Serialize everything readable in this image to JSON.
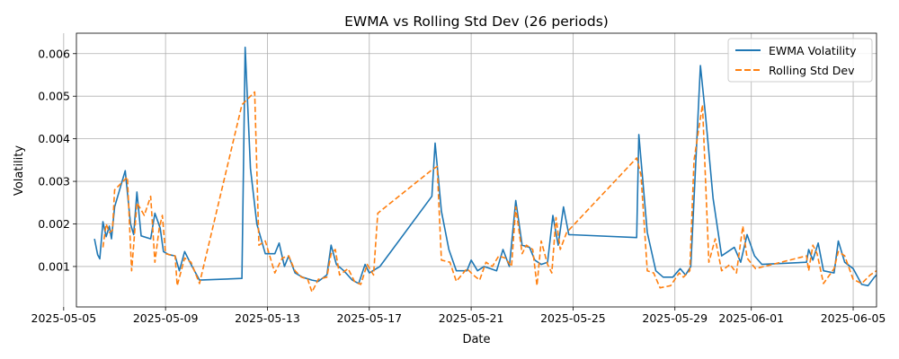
{
  "chart_data": {
    "type": "line",
    "title": "EWMA vs Rolling Std Dev (26 periods)",
    "xlabel": "Date",
    "ylabel": "Volatility",
    "x_axis_type": "date",
    "xlim": [
      "2025-05-05T12:00",
      "2025-06-05T22:00"
    ],
    "ylim": [
      5e-05,
      0.00648
    ],
    "xticks": [
      "2025-05-05",
      "2025-05-09",
      "2025-05-13",
      "2025-05-17",
      "2025-05-21",
      "2025-05-25",
      "2025-05-29",
      "2025-06-01",
      "2025-06-05"
    ],
    "yticks": [
      0.001,
      0.002,
      0.003,
      0.004,
      0.005,
      0.006
    ],
    "ytick_labels": [
      "0.001",
      "0.002",
      "0.003",
      "0.004",
      "0.005",
      "0.006"
    ],
    "grid": true,
    "legend_position": "top-right",
    "series": [
      {
        "name": "EWMA Volatility",
        "color": "#1f77b4",
        "style": "solid",
        "points": [
          [
            "2025-05-06T05:00",
            0.00165
          ],
          [
            "2025-05-06T08:00",
            0.00128
          ],
          [
            "2025-05-06T10:00",
            0.00118
          ],
          [
            "2025-05-06T13:00",
            0.00205
          ],
          [
            "2025-05-06T16:00",
            0.0017
          ],
          [
            "2025-05-06T19:00",
            0.00195
          ],
          [
            "2025-05-06T21:00",
            0.00165
          ],
          [
            "2025-05-07T00:00",
            0.0024
          ],
          [
            "2025-05-07T10:00",
            0.00325
          ],
          [
            "2025-05-07T15:00",
            0.002
          ],
          [
            "2025-05-07T18:00",
            0.00175
          ],
          [
            "2025-05-07T21:00",
            0.00275
          ],
          [
            "2025-05-08T01:00",
            0.00172
          ],
          [
            "2025-05-08T10:00",
            0.00165
          ],
          [
            "2025-05-08T14:00",
            0.00225
          ],
          [
            "2025-05-08T19:00",
            0.0019
          ],
          [
            "2025-05-08T22:00",
            0.00135
          ],
          [
            "2025-05-09T03:00",
            0.00128
          ],
          [
            "2025-05-09T09:00",
            0.00125
          ],
          [
            "2025-05-09T13:00",
            0.0009
          ],
          [
            "2025-05-09T18:00",
            0.00135
          ],
          [
            "2025-05-10T00:00",
            0.00105
          ],
          [
            "2025-05-10T08:00",
            0.00068
          ],
          [
            "2025-05-12T00:00",
            0.00072
          ],
          [
            "2025-05-12T03:00",
            0.00615
          ],
          [
            "2025-05-12T08:00",
            0.0033
          ],
          [
            "2025-05-12T14:00",
            0.002
          ],
          [
            "2025-05-12T22:00",
            0.0013
          ],
          [
            "2025-05-13T07:00",
            0.0013
          ],
          [
            "2025-05-13T11:00",
            0.00155
          ],
          [
            "2025-05-13T16:00",
            0.001
          ],
          [
            "2025-05-13T20:00",
            0.00125
          ],
          [
            "2025-05-14T02:00",
            0.00085
          ],
          [
            "2025-05-14T09:00",
            0.00075
          ],
          [
            "2025-05-14T18:00",
            0.00068
          ],
          [
            "2025-05-15T00:00",
            0.00065
          ],
          [
            "2025-05-15T08:00",
            0.0008
          ],
          [
            "2025-05-15T12:00",
            0.0015
          ],
          [
            "2025-05-15T17:00",
            0.00105
          ],
          [
            "2025-05-16T00:00",
            0.0009
          ],
          [
            "2025-05-16T08:00",
            0.00068
          ],
          [
            "2025-05-16T14:00",
            0.0006
          ],
          [
            "2025-05-16T20:00",
            0.00105
          ],
          [
            "2025-05-17T00:00",
            0.00085
          ],
          [
            "2025-05-17T10:00",
            0.001
          ],
          [
            "2025-05-19T11:00",
            0.00265
          ],
          [
            "2025-05-19T14:00",
            0.0039
          ],
          [
            "2025-05-19T20:00",
            0.0023
          ],
          [
            "2025-05-20T03:00",
            0.0014
          ],
          [
            "2025-05-20T10:00",
            0.0009
          ],
          [
            "2025-05-20T20:00",
            0.0009
          ],
          [
            "2025-05-21T00:00",
            0.00115
          ],
          [
            "2025-05-21T06:00",
            0.0009
          ],
          [
            "2025-05-21T12:00",
            0.001
          ],
          [
            "2025-05-21T18:00",
            0.00095
          ],
          [
            "2025-05-22T00:00",
            0.0009
          ],
          [
            "2025-05-22T06:00",
            0.0014
          ],
          [
            "2025-05-22T12:00",
            0.001
          ],
          [
            "2025-05-22T18:00",
            0.00255
          ],
          [
            "2025-05-23T00:00",
            0.0015
          ],
          [
            "2025-05-23T07:00",
            0.00145
          ],
          [
            "2025-05-23T12:00",
            0.00115
          ],
          [
            "2025-05-23T18:00",
            0.00105
          ],
          [
            "2025-05-24T00:00",
            0.0011
          ],
          [
            "2025-05-24T05:00",
            0.0022
          ],
          [
            "2025-05-24T10:00",
            0.0015
          ],
          [
            "2025-05-24T15:00",
            0.0024
          ],
          [
            "2025-05-24T20:00",
            0.00175
          ],
          [
            "2025-05-27T12:00",
            0.00168
          ],
          [
            "2025-05-27T14:00",
            0.0041
          ],
          [
            "2025-05-27T22:00",
            0.0018
          ],
          [
            "2025-05-28T06:00",
            0.0009
          ],
          [
            "2025-05-28T13:00",
            0.00075
          ],
          [
            "2025-05-28T22:00",
            0.00075
          ],
          [
            "2025-05-29T05:00",
            0.00095
          ],
          [
            "2025-05-29T10:00",
            0.0008
          ],
          [
            "2025-05-29T15:00",
            0.001
          ],
          [
            "2025-05-30T00:00",
            0.00572
          ],
          [
            "2025-05-30T05:00",
            0.0045
          ],
          [
            "2025-05-30T12:00",
            0.0026
          ],
          [
            "2025-05-30T20:00",
            0.00125
          ],
          [
            "2025-05-31T08:00",
            0.00145
          ],
          [
            "2025-05-31T14:00",
            0.0011
          ],
          [
            "2025-05-31T20:00",
            0.00175
          ],
          [
            "2025-06-01T03:00",
            0.00125
          ],
          [
            "2025-06-01T10:00",
            0.00105
          ],
          [
            "2025-06-03T04:00",
            0.0011
          ],
          [
            "2025-06-03T06:00",
            0.0014
          ],
          [
            "2025-06-03T10:00",
            0.00115
          ],
          [
            "2025-06-03T15:00",
            0.00155
          ],
          [
            "2025-06-03T20:00",
            0.0009
          ],
          [
            "2025-06-04T06:00",
            0.00085
          ],
          [
            "2025-06-04T10:00",
            0.0016
          ],
          [
            "2025-06-04T16:00",
            0.0011
          ],
          [
            "2025-06-05T00:00",
            0.00095
          ],
          [
            "2025-06-05T08:00",
            0.00058
          ],
          [
            "2025-06-05T14:00",
            0.00055
          ],
          [
            "2025-06-05T20:00",
            0.00075
          ],
          [
            "2025-06-06T02:00",
            0.0009
          ],
          [
            "2025-06-06T06:00",
            0.0007
          ],
          [
            "2025-06-06T12:00",
            0.00045
          ]
        ]
      },
      {
        "name": "Rolling Std Dev",
        "color": "#ff7f0e",
        "style": "dashed",
        "points": [
          [
            "2025-05-06T13:00",
            0.00145
          ],
          [
            "2025-05-06T16:00",
            0.002
          ],
          [
            "2025-05-06T19:00",
            0.0018
          ],
          [
            "2025-05-06T22:00",
            0.00185
          ],
          [
            "2025-05-07T00:00",
            0.0028
          ],
          [
            "2025-05-07T12:00",
            0.0031
          ],
          [
            "2025-05-07T16:00",
            0.0009
          ],
          [
            "2025-05-07T18:00",
            0.0015
          ],
          [
            "2025-05-07T21:00",
            0.0025
          ],
          [
            "2025-05-08T04:00",
            0.0022
          ],
          [
            "2025-05-08T10:00",
            0.00265
          ],
          [
            "2025-05-08T14:00",
            0.0011
          ],
          [
            "2025-05-08T18:00",
            0.0019
          ],
          [
            "2025-05-08T21:00",
            0.0022
          ],
          [
            "2025-05-09T00:00",
            0.0013
          ],
          [
            "2025-05-09T09:00",
            0.00125
          ],
          [
            "2025-05-09T11:00",
            0.00055
          ],
          [
            "2025-05-09T18:00",
            0.0012
          ],
          [
            "2025-05-10T00:00",
            0.0011
          ],
          [
            "2025-05-10T08:00",
            0.0006
          ],
          [
            "2025-05-12T00:00",
            0.0048
          ],
          [
            "2025-05-12T12:00",
            0.0051
          ],
          [
            "2025-05-12T16:00",
            0.0015
          ],
          [
            "2025-05-12T22:00",
            0.0016
          ],
          [
            "2025-05-13T07:00",
            0.00085
          ],
          [
            "2025-05-13T14:00",
            0.0012
          ],
          [
            "2025-05-13T20:00",
            0.00125
          ],
          [
            "2025-05-14T02:00",
            0.0009
          ],
          [
            "2025-05-14T08:00",
            0.00075
          ],
          [
            "2025-05-14T14:00",
            0.0007
          ],
          [
            "2025-05-14T18:00",
            0.0004
          ],
          [
            "2025-05-15T00:00",
            0.0007
          ],
          [
            "2025-05-15T08:00",
            0.00075
          ],
          [
            "2025-05-15T12:00",
            0.0013
          ],
          [
            "2025-05-15T16:00",
            0.0014
          ],
          [
            "2025-05-15T20:00",
            0.0008
          ],
          [
            "2025-05-16T04:00",
            0.00095
          ],
          [
            "2025-05-16T10:00",
            0.00065
          ],
          [
            "2025-05-16T16:00",
            0.00058
          ],
          [
            "2025-05-16T22:00",
            0.00105
          ],
          [
            "2025-05-17T04:00",
            0.0008
          ],
          [
            "2025-05-17T08:00",
            0.00225
          ],
          [
            "2025-05-19T10:00",
            0.00325
          ],
          [
            "2025-05-19T16:00",
            0.00335
          ],
          [
            "2025-05-19T20:00",
            0.00115
          ],
          [
            "2025-05-20T04:00",
            0.0011
          ],
          [
            "2025-05-20T10:00",
            0.00065
          ],
          [
            "2025-05-20T20:00",
            0.00095
          ],
          [
            "2025-05-21T02:00",
            0.0008
          ],
          [
            "2025-05-21T08:00",
            0.00068
          ],
          [
            "2025-05-21T14:00",
            0.0011
          ],
          [
            "2025-05-21T20:00",
            0.001
          ],
          [
            "2025-05-22T02:00",
            0.00125
          ],
          [
            "2025-05-22T08:00",
            0.0012
          ],
          [
            "2025-05-22T14:00",
            0.001
          ],
          [
            "2025-05-22T18:00",
            0.0024
          ],
          [
            "2025-05-23T00:00",
            0.0013
          ],
          [
            "2025-05-23T04:00",
            0.0015
          ],
          [
            "2025-05-23T10:00",
            0.0014
          ],
          [
            "2025-05-23T14:00",
            0.00055
          ],
          [
            "2025-05-23T18:00",
            0.0016
          ],
          [
            "2025-05-24T00:00",
            0.00105
          ],
          [
            "2025-05-24T04:00",
            0.00085
          ],
          [
            "2025-05-24T08:00",
            0.00215
          ],
          [
            "2025-05-24T12:00",
            0.0014
          ],
          [
            "2025-05-24T18:00",
            0.0018
          ],
          [
            "2025-05-27T12:00",
            0.00355
          ],
          [
            "2025-05-27T16:00",
            0.00315
          ],
          [
            "2025-05-27T22:00",
            0.0009
          ],
          [
            "2025-05-28T04:00",
            0.00085
          ],
          [
            "2025-05-28T10:00",
            0.0005
          ],
          [
            "2025-05-28T20:00",
            0.00055
          ],
          [
            "2025-05-29T04:00",
            0.00085
          ],
          [
            "2025-05-29T08:00",
            0.00075
          ],
          [
            "2025-05-29T14:00",
            0.0009
          ],
          [
            "2025-05-29T18:00",
            0.0035
          ],
          [
            "2025-05-30T02:00",
            0.0048
          ],
          [
            "2025-05-30T08:00",
            0.0011
          ],
          [
            "2025-05-30T14:00",
            0.00165
          ],
          [
            "2025-05-30T20:00",
            0.0009
          ],
          [
            "2025-05-31T04:00",
            0.00105
          ],
          [
            "2025-05-31T10:00",
            0.00085
          ],
          [
            "2025-05-31T16:00",
            0.00195
          ],
          [
            "2025-05-31T20:00",
            0.0012
          ],
          [
            "2025-06-01T04:00",
            0.00095
          ],
          [
            "2025-06-03T04:00",
            0.00125
          ],
          [
            "2025-06-03T06:00",
            0.0009
          ],
          [
            "2025-06-03T10:00",
            0.0015
          ],
          [
            "2025-06-03T14:00",
            0.0013
          ],
          [
            "2025-06-03T20:00",
            0.0006
          ],
          [
            "2025-06-04T06:00",
            0.00095
          ],
          [
            "2025-06-04T10:00",
            0.00135
          ],
          [
            "2025-06-04T16:00",
            0.00125
          ],
          [
            "2025-06-05T00:00",
            0.0007
          ],
          [
            "2025-06-05T08:00",
            0.0006
          ],
          [
            "2025-06-05T16:00",
            0.0008
          ],
          [
            "2025-06-05T22:00",
            0.0009
          ],
          [
            "2025-06-06T04:00",
            0.0009
          ],
          [
            "2025-06-06T10:00",
            0.00055
          ],
          [
            "2025-06-06T14:00",
            0.00035
          ]
        ]
      }
    ]
  }
}
